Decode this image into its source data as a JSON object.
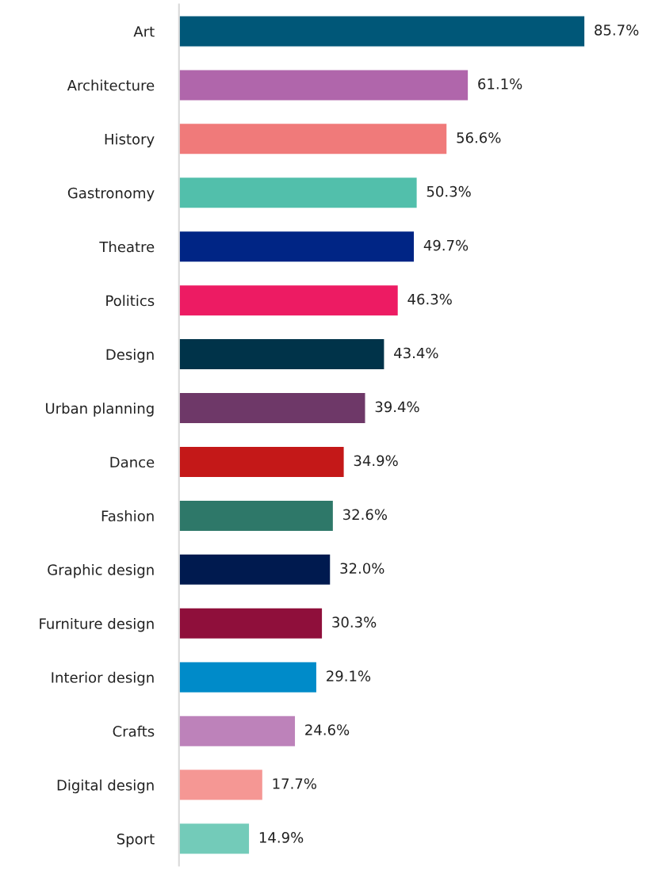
{
  "chart_data": {
    "type": "bar",
    "orientation": "horizontal",
    "categories": [
      "Art",
      "Architecture",
      "History",
      "Gastronomy",
      "Theatre",
      "Politics",
      "Design",
      "Urban planning",
      "Dance",
      "Fashion",
      "Graphic design",
      "Furniture design",
      "Interior design",
      "Crafts",
      "Digital design",
      "Sport"
    ],
    "values": [
      85.7,
      61.1,
      56.6,
      50.3,
      49.7,
      46.3,
      43.4,
      39.4,
      34.9,
      32.6,
      32.0,
      30.3,
      29.1,
      24.6,
      17.7,
      14.9
    ],
    "value_labels": [
      "85.7%",
      "61.1%",
      "56.6%",
      "50.3%",
      "49.7%",
      "46.3%",
      "43.4%",
      "39.4%",
      "34.9%",
      "32.6%",
      "32.0%",
      "30.3%",
      "29.1%",
      "24.6%",
      "17.7%",
      "14.9%"
    ],
    "colors": [
      "#005778",
      "#b066ab",
      "#f07a7a",
      "#52bfab",
      "#002585",
      "#ed1b63",
      "#003349",
      "#6e3868",
      "#c41818",
      "#2e7869",
      "#001a4f",
      "#8f0f3b",
      "#008bc9",
      "#bd82ba",
      "#f59794",
      "#73cbb9"
    ],
    "grid": false,
    "legend": false
  }
}
